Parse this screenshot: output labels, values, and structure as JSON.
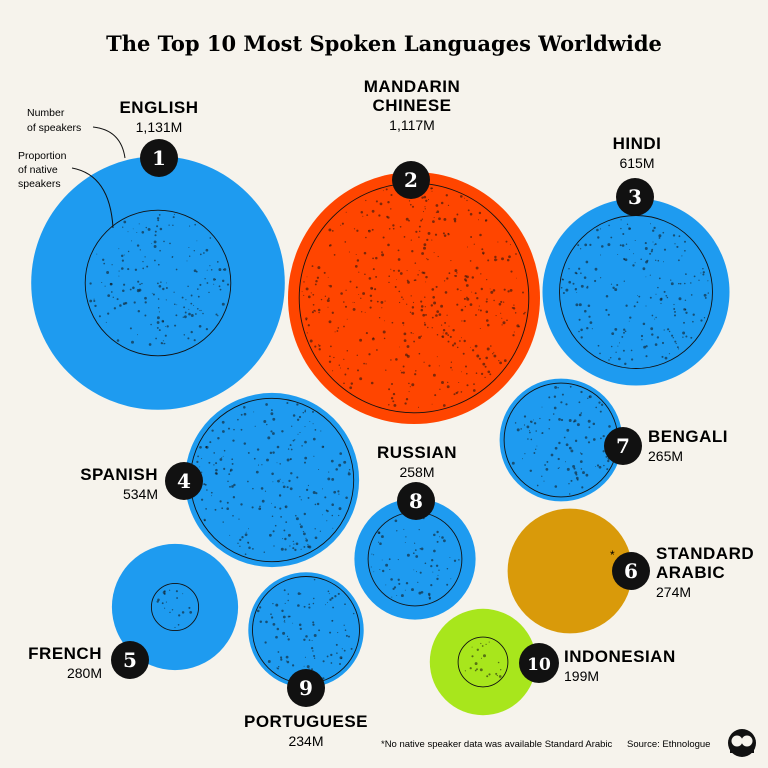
{
  "title": "The Top 10 Most Spoken Languages Worldwide",
  "legend": {
    "speakers": [
      "Number",
      "of speakers"
    ],
    "native": [
      "Proportion",
      "of native",
      "speakers"
    ]
  },
  "colors": {
    "blue": "#1e9bf0",
    "red": "#ff4500",
    "orange": "#d99a0a",
    "green": "#a8e61c",
    "badge": "#111111",
    "background": "#f6f3ec"
  },
  "chart_data": {
    "type": "bubble",
    "title": "The Top 10 Most Spoken Languages Worldwide",
    "units": "M",
    "series": [
      {
        "rank": 1,
        "name": [
          "ENGLISH"
        ],
        "label": "1,131M",
        "speakers_m": 1131,
        "native_fraction": 0.33,
        "color": "#1e9bf0"
      },
      {
        "rank": 2,
        "name": [
          "MANDARIN",
          "CHINESE"
        ],
        "label": "1,117M",
        "speakers_m": 1117,
        "native_fraction": 0.83,
        "color": "#ff4500"
      },
      {
        "rank": 3,
        "name": [
          "HINDI"
        ],
        "label": "615M",
        "speakers_m": 615,
        "native_fraction": 0.67,
        "color": "#1e9bf0"
      },
      {
        "rank": 4,
        "name": [
          "SPANISH"
        ],
        "label": "534M",
        "speakers_m": 534,
        "native_fraction": 0.88,
        "color": "#1e9bf0"
      },
      {
        "rank": 5,
        "name": [
          "FRENCH"
        ],
        "label": "280M",
        "speakers_m": 280,
        "native_fraction": 0.14,
        "color": "#1e9bf0"
      },
      {
        "rank": 6,
        "name": [
          "STANDARD",
          "ARABIC"
        ],
        "label": "274M",
        "speakers_m": 274,
        "native_fraction": null,
        "note": "*",
        "color": "#d99a0a"
      },
      {
        "rank": 7,
        "name": [
          "BENGALI"
        ],
        "label": "265M",
        "speakers_m": 265,
        "native_fraction": 0.86,
        "color": "#1e9bf0"
      },
      {
        "rank": 8,
        "name": [
          "RUSSIAN"
        ],
        "label": "258M",
        "speakers_m": 258,
        "native_fraction": 0.6,
        "color": "#1e9bf0"
      },
      {
        "rank": 9,
        "name": [
          "PORTUGUESE"
        ],
        "label": "234M",
        "speakers_m": 234,
        "native_fraction": 0.86,
        "color": "#1e9bf0"
      },
      {
        "rank": 10,
        "name": [
          "INDONESIAN"
        ],
        "label": "199M",
        "speakers_m": 199,
        "native_fraction": 0.22,
        "color": "#a8e61c"
      }
    ]
  },
  "footer": {
    "note": "*No native speaker data was available Standard Arabic",
    "source": "Source: Ethnologue"
  }
}
